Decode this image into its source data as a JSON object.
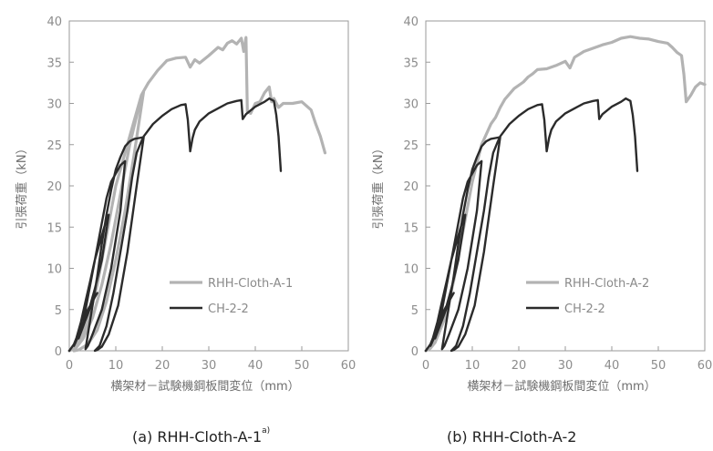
{
  "colors": {
    "rhh": "#b3b3b3",
    "ch": "#2b2b2b",
    "axis": "#9a9a9a",
    "text": "#8c8c8c"
  },
  "chart_data": [
    {
      "type": "line",
      "panel_label": "(a) RHH-Cloth-A-1",
      "panel_label_superscript": "a)",
      "xlabel": "横架材－試験機鋼板間変位（mm）",
      "ylabel": "引張荷重（kN）",
      "xlim": [
        0,
        60
      ],
      "ylim": [
        0,
        40
      ],
      "xticks": [
        "0",
        "10",
        "20",
        "30",
        "40",
        "50",
        "60"
      ],
      "yticks": [
        "0",
        "5",
        "10",
        "15",
        "20",
        "25",
        "30",
        "35",
        "40"
      ],
      "grid": false,
      "legend_position": "right-middle",
      "series": [
        {
          "name": "RHH-Cloth-A-1",
          "color": "#b3b3b3",
          "x": [
            0,
            1,
            2,
            4,
            6,
            8,
            10,
            12,
            14,
            15,
            15.5,
            16,
            14,
            12,
            10,
            8,
            6,
            4,
            2,
            1,
            1.5,
            3,
            5,
            7,
            9,
            11,
            13,
            14.5,
            15.5,
            16,
            17,
            19,
            21,
            23,
            25,
            26,
            27,
            28,
            30,
            32,
            33,
            34,
            35,
            36,
            37,
            37.5,
            38,
            38.3,
            39,
            40,
            41,
            42,
            43,
            43.5,
            44,
            45,
            46,
            48,
            50,
            52,
            53,
            54,
            55
          ],
          "y": [
            0,
            0.3,
            1,
            3.5,
            8,
            14,
            20,
            24,
            28,
            30,
            31,
            31.5,
            24,
            17,
            11,
            6,
            2.5,
            0.8,
            0.1,
            0,
            0.4,
            1.5,
            4,
            8,
            13,
            19,
            25,
            28.5,
            31,
            31.5,
            32.5,
            34,
            35.2,
            35.5,
            35.6,
            34.4,
            35.3,
            34.9,
            35.8,
            36.8,
            36.5,
            37.3,
            37.6,
            37.2,
            37.9,
            36.3,
            38.0,
            29.0,
            28.8,
            30.0,
            30.2,
            31.3,
            32.0,
            30.2,
            30.6,
            29.5,
            30.0,
            30.0,
            30.2,
            29.2,
            27.5,
            26.0,
            24.0
          ]
        },
        {
          "name": "CH-2-2",
          "color": "#2b2b2b",
          "x": [
            0,
            1,
            2,
            3,
            4,
            5,
            6,
            5,
            4,
            3,
            2,
            1,
            1.5,
            2.5,
            3.5,
            4.5,
            5.5,
            6.5,
            7.5,
            8.5,
            7,
            5.5,
            4,
            3,
            2,
            3,
            4,
            5,
            6,
            7,
            8,
            9,
            10,
            11,
            12,
            11,
            9,
            7,
            5,
            4,
            3.5,
            4,
            5,
            6,
            7,
            8,
            9,
            10,
            11,
            12,
            13,
            14,
            15,
            16,
            14.5,
            12.5,
            10.5,
            8.5,
            7,
            6,
            5.5,
            6.5,
            8,
            9.5,
            11,
            12.5,
            13.5,
            14.5,
            15.5,
            16,
            18,
            20,
            22,
            24,
            25,
            25.5,
            26,
            26.5,
            27,
            28,
            30,
            32,
            34,
            36,
            37,
            37.3,
            38,
            40,
            42,
            43,
            44,
            44.5,
            45,
            45.5
          ],
          "y": [
            0,
            0.8,
            2.2,
            3.5,
            5,
            6,
            7,
            6,
            4.5,
            3,
            1.8,
            0.6,
            1.5,
            3.5,
            6,
            8.5,
            11,
            13,
            15,
            16.5,
            11,
            7.5,
            4.5,
            3,
            1.5,
            3.5,
            6.5,
            9.5,
            12.5,
            15.5,
            18.5,
            20.5,
            21.5,
            22.5,
            23,
            17,
            10,
            5,
            2,
            0.6,
            0.2,
            2,
            5.5,
            9,
            13,
            16.5,
            19.5,
            22,
            23.5,
            24.8,
            25.4,
            25.7,
            25.8,
            25.9,
            20,
            12,
            5.5,
            2,
            0.5,
            0.1,
            0,
            0.6,
            3,
            7,
            12,
            17,
            21,
            24,
            25.4,
            26,
            27.5,
            28.5,
            29.3,
            29.8,
            29.9,
            28.0,
            24.2,
            25.8,
            26.8,
            27.8,
            28.8,
            29.4,
            30.0,
            30.3,
            30.4,
            28.1,
            28.7,
            29.6,
            30.2,
            30.6,
            30.3,
            28.6,
            26.0,
            21.8
          ]
        }
      ]
    },
    {
      "type": "line",
      "panel_label": "(b) RHH-Cloth-A-2",
      "xlabel": "横架材－試験機鋼板間変位（mm）",
      "ylabel": "引張荷重（kN）",
      "xlim": [
        0,
        60
      ],
      "ylim": [
        0,
        40
      ],
      "xticks": [
        "0",
        "10",
        "20",
        "30",
        "40",
        "50",
        "60"
      ],
      "yticks": [
        "0",
        "5",
        "10",
        "15",
        "20",
        "25",
        "30",
        "35",
        "40"
      ],
      "grid": false,
      "legend_position": "right-middle",
      "series": [
        {
          "name": "RHH-Cloth-A-2",
          "color": "#b3b3b3",
          "x": [
            0,
            1,
            2,
            4,
            6,
            8,
            10,
            12,
            14,
            15,
            16,
            17,
            19,
            21,
            22,
            23,
            24,
            26,
            28,
            30,
            31,
            32,
            34,
            36,
            38,
            40,
            42,
            44,
            46,
            48,
            50,
            52,
            53,
            54,
            55,
            55.5,
            56,
            57,
            58,
            59,
            60
          ],
          "y": [
            0,
            0.3,
            1,
            3.8,
            8.5,
            14.5,
            20.5,
            25,
            27.5,
            28.3,
            29.5,
            30.5,
            31.8,
            32.6,
            33.2,
            33.6,
            34.1,
            34.2,
            34.6,
            35.1,
            34.3,
            35.6,
            36.3,
            36.7,
            37.1,
            37.4,
            37.9,
            38.1,
            37.9,
            37.8,
            37.5,
            37.3,
            36.8,
            36.2,
            35.8,
            33.5,
            30.2,
            31.0,
            32.0,
            32.5,
            32.3
          ]
        },
        {
          "name": "CH-2-2",
          "color": "#2b2b2b",
          "x": [
            0,
            1,
            2,
            3,
            4,
            5,
            6,
            5,
            4,
            3,
            2,
            1,
            1.5,
            2.5,
            3.5,
            4.5,
            5.5,
            6.5,
            7.5,
            8.5,
            7,
            5.5,
            4,
            3,
            2,
            3,
            4,
            5,
            6,
            7,
            8,
            9,
            10,
            11,
            12,
            11,
            9,
            7,
            5,
            4,
            3.5,
            4,
            5,
            6,
            7,
            8,
            9,
            10,
            11,
            12,
            13,
            14,
            15,
            16,
            14.5,
            12.5,
            10.5,
            8.5,
            7,
            6,
            5.5,
            6.5,
            8,
            9.5,
            11,
            12.5,
            13.5,
            14.5,
            15.5,
            16,
            18,
            20,
            22,
            24,
            25,
            25.5,
            26,
            26.5,
            27,
            28,
            30,
            32,
            34,
            36,
            37,
            37.3,
            38,
            40,
            42,
            43,
            44,
            44.5,
            45,
            45.5
          ],
          "y": [
            0,
            0.8,
            2.2,
            3.5,
            5,
            6,
            7,
            6,
            4.5,
            3,
            1.8,
            0.6,
            1.5,
            3.5,
            6,
            8.5,
            11,
            13,
            15,
            16.5,
            11,
            7.5,
            4.5,
            3,
            1.5,
            3.5,
            6.5,
            9.5,
            12.5,
            15.5,
            18.5,
            20.5,
            21.5,
            22.5,
            23,
            17,
            10,
            5,
            2,
            0.6,
            0.2,
            2,
            5.5,
            9,
            13,
            16.5,
            19.5,
            22,
            23.5,
            24.8,
            25.4,
            25.7,
            25.8,
            25.9,
            20,
            12,
            5.5,
            2,
            0.5,
            0.1,
            0,
            0.6,
            3,
            7,
            12,
            17,
            21,
            24,
            25.4,
            26,
            27.5,
            28.5,
            29.3,
            29.8,
            29.9,
            28.0,
            24.2,
            25.8,
            26.8,
            27.8,
            28.8,
            29.4,
            30.0,
            30.3,
            30.4,
            28.1,
            28.7,
            29.6,
            30.2,
            30.6,
            30.3,
            28.6,
            26.0,
            21.8
          ]
        }
      ]
    }
  ]
}
